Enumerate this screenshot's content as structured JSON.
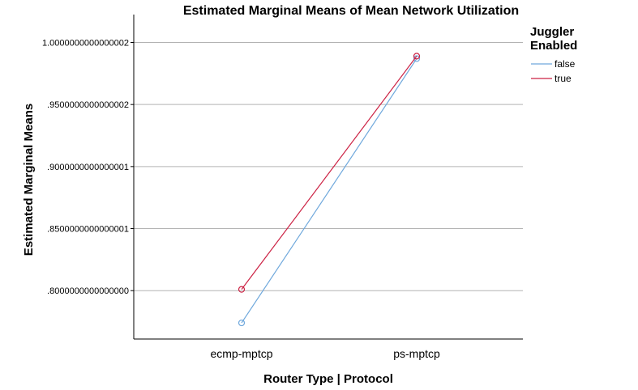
{
  "chart_data": {
    "type": "line",
    "title": "Estimated Marginal Means of Mean Network Utilization",
    "xlabel": "Router Type | Protocol",
    "ylabel": "Estimated Marginal Means",
    "categories": [
      "ecmp-mptcp",
      "ps-mptcp"
    ],
    "series": [
      {
        "name": "false",
        "values": [
          0.774,
          0.987
        ],
        "color": "#6fa8dc"
      },
      {
        "name": "true",
        "values": [
          0.801,
          0.989
        ],
        "color": "#cc2244"
      }
    ],
    "ylim": [
      0.761,
      1.0225
    ],
    "yticks": [
      0.8,
      0.85,
      0.9,
      0.95,
      1.0
    ],
    "ytick_labels": [
      ".8000000000000000",
      ".8500000000000001",
      ".9000000000000001",
      ".9500000000000002",
      "1.0000000000000002"
    ],
    "grid": true,
    "legend": {
      "title_line1": "Juggler",
      "title_line2": "Enabled",
      "placement": "right"
    },
    "marker": "open-circle"
  }
}
